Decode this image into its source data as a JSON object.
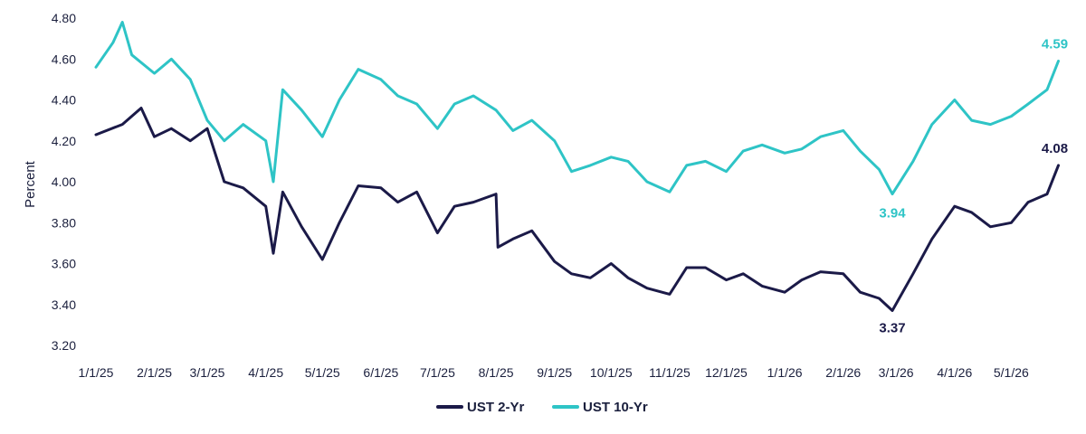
{
  "chart_data": {
    "type": "line",
    "ylabel": "Percent",
    "xlabel": "",
    "ylim": [
      3.2,
      4.8
    ],
    "y_ticks": [
      "3.20",
      "3.40",
      "3.60",
      "3.80",
      "4.00",
      "4.20",
      "4.40",
      "4.60",
      "4.80"
    ],
    "x_ticks": [
      "1/1/25",
      "2/1/25",
      "3/1/25",
      "4/1/25",
      "5/1/25",
      "6/1/25",
      "7/1/25",
      "8/1/25",
      "9/1/25",
      "10/1/25",
      "11/1/25",
      "12/1/25",
      "1/1/26",
      "2/1/26",
      "3/1/26",
      "4/1/26",
      "5/1/26"
    ],
    "grid": false,
    "legend_position": "bottom-center",
    "series": [
      {
        "name": "UST 2-Yr",
        "color": "#1b1a48",
        "points": [
          [
            "1/1/25",
            4.23
          ],
          [
            "1/15/25",
            4.28
          ],
          [
            "1/25/25",
            4.36
          ],
          [
            "2/1/25",
            4.22
          ],
          [
            "2/10/25",
            4.26
          ],
          [
            "2/20/25",
            4.2
          ],
          [
            "3/1/25",
            4.26
          ],
          [
            "3/10/25",
            4.0
          ],
          [
            "3/20/25",
            3.97
          ],
          [
            "4/1/25",
            3.88
          ],
          [
            "4/5/25",
            3.65
          ],
          [
            "4/10/25",
            3.95
          ],
          [
            "4/20/25",
            3.78
          ],
          [
            "5/1/25",
            3.62
          ],
          [
            "5/10/25",
            3.8
          ],
          [
            "5/20/25",
            3.98
          ],
          [
            "6/1/25",
            3.97
          ],
          [
            "6/10/25",
            3.9
          ],
          [
            "6/20/25",
            3.95
          ],
          [
            "7/1/25",
            3.75
          ],
          [
            "7/10/25",
            3.88
          ],
          [
            "7/20/25",
            3.9
          ],
          [
            "8/1/25",
            3.94
          ],
          [
            "8/2/25",
            3.68
          ],
          [
            "8/10/25",
            3.72
          ],
          [
            "8/20/25",
            3.76
          ],
          [
            "9/1/25",
            3.61
          ],
          [
            "9/10/25",
            3.55
          ],
          [
            "9/20/25",
            3.53
          ],
          [
            "10/1/25",
            3.6
          ],
          [
            "10/10/25",
            3.53
          ],
          [
            "10/20/25",
            3.48
          ],
          [
            "11/1/25",
            3.45
          ],
          [
            "11/10/25",
            3.58
          ],
          [
            "11/20/25",
            3.58
          ],
          [
            "12/1/25",
            3.52
          ],
          [
            "12/10/25",
            3.55
          ],
          [
            "12/20/25",
            3.49
          ],
          [
            "1/1/26",
            3.46
          ],
          [
            "1/10/26",
            3.52
          ],
          [
            "1/20/26",
            3.56
          ],
          [
            "2/1/26",
            3.55
          ],
          [
            "2/10/26",
            3.46
          ],
          [
            "2/20/26",
            3.43
          ],
          [
            "2/27/26",
            3.37
          ],
          [
            "3/10/26",
            3.55
          ],
          [
            "3/20/26",
            3.72
          ],
          [
            "4/1/26",
            3.88
          ],
          [
            "4/10/26",
            3.85
          ],
          [
            "4/20/26",
            3.78
          ],
          [
            "5/1/26",
            3.8
          ],
          [
            "5/10/26",
            3.9
          ],
          [
            "5/20/26",
            3.94
          ],
          [
            "5/26/26",
            4.08
          ]
        ]
      },
      {
        "name": "UST 10-Yr",
        "color": "#2ec4c6",
        "points": [
          [
            "1/1/25",
            4.56
          ],
          [
            "1/10/25",
            4.68
          ],
          [
            "1/15/25",
            4.78
          ],
          [
            "1/20/25",
            4.62
          ],
          [
            "2/1/25",
            4.53
          ],
          [
            "2/10/25",
            4.6
          ],
          [
            "2/20/25",
            4.5
          ],
          [
            "3/1/25",
            4.3
          ],
          [
            "3/10/25",
            4.2
          ],
          [
            "3/20/25",
            4.28
          ],
          [
            "4/1/25",
            4.2
          ],
          [
            "4/5/25",
            4.0
          ],
          [
            "4/10/25",
            4.45
          ],
          [
            "4/20/25",
            4.35
          ],
          [
            "5/1/25",
            4.22
          ],
          [
            "5/10/25",
            4.4
          ],
          [
            "5/20/25",
            4.55
          ],
          [
            "6/1/25",
            4.5
          ],
          [
            "6/10/25",
            4.42
          ],
          [
            "6/20/25",
            4.38
          ],
          [
            "7/1/25",
            4.26
          ],
          [
            "7/10/25",
            4.38
          ],
          [
            "7/20/25",
            4.42
          ],
          [
            "8/1/25",
            4.35
          ],
          [
            "8/10/25",
            4.25
          ],
          [
            "8/20/25",
            4.3
          ],
          [
            "9/1/25",
            4.2
          ],
          [
            "9/10/25",
            4.05
          ],
          [
            "9/20/25",
            4.08
          ],
          [
            "10/1/25",
            4.12
          ],
          [
            "10/10/25",
            4.1
          ],
          [
            "10/20/25",
            4.0
          ],
          [
            "11/1/25",
            3.95
          ],
          [
            "11/10/25",
            4.08
          ],
          [
            "11/20/25",
            4.1
          ],
          [
            "12/1/25",
            4.05
          ],
          [
            "12/10/25",
            4.15
          ],
          [
            "12/20/25",
            4.18
          ],
          [
            "1/1/26",
            4.14
          ],
          [
            "1/10/26",
            4.16
          ],
          [
            "1/20/26",
            4.22
          ],
          [
            "2/1/26",
            4.25
          ],
          [
            "2/10/26",
            4.15
          ],
          [
            "2/20/26",
            4.06
          ],
          [
            "2/27/26",
            3.94
          ],
          [
            "3/10/26",
            4.1
          ],
          [
            "3/20/26",
            4.28
          ],
          [
            "4/1/26",
            4.4
          ],
          [
            "4/10/26",
            4.3
          ],
          [
            "4/20/26",
            4.28
          ],
          [
            "5/1/26",
            4.32
          ],
          [
            "5/10/26",
            4.38
          ],
          [
            "5/20/26",
            4.45
          ],
          [
            "5/26/26",
            4.59
          ]
        ]
      }
    ],
    "annotations": [
      {
        "text": "4.59",
        "series": "UST 10-Yr",
        "x": "5/26/26",
        "y": 4.59
      },
      {
        "text": "4.08",
        "series": "UST 2-Yr",
        "x": "5/26/26",
        "y": 4.08
      },
      {
        "text": "3.94",
        "series": "UST 10-Yr",
        "x": "2/27/26",
        "y": 3.94
      },
      {
        "text": "3.37",
        "series": "UST 2-Yr",
        "x": "2/27/26",
        "y": 3.37
      }
    ]
  }
}
